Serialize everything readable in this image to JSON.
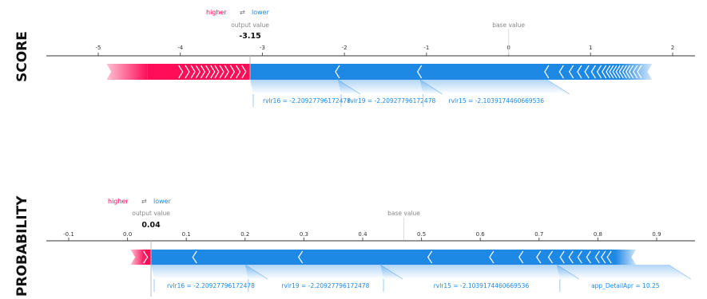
{
  "row_labels": [
    "SCORE",
    "PROBABILITY"
  ],
  "chart_data": [
    {
      "type": "bar",
      "row_label": "SCORE",
      "legend": {
        "higher": "higher",
        "arrow": "⇄",
        "lower": "lower"
      },
      "output_label": "output value",
      "output_value": -3.15,
      "output_value_text": "-3.15",
      "base_label": "base value",
      "base_value": 0.0,
      "xlim": [
        -5.0,
        2.0
      ],
      "ticks": [
        -5,
        -4,
        -3,
        -2,
        -1,
        0,
        1,
        2
      ],
      "tick_labels": [
        "-5",
        "-4",
        "-3",
        "-2",
        "-1",
        "0",
        "1",
        "2"
      ],
      "positive_segment": {
        "start": -4.9,
        "end": -3.15,
        "solid_from": -4.4
      },
      "negative_segment": {
        "start": -3.15,
        "end": 1.75,
        "fade_from": 1.35
      },
      "negative_chevrons": [
        -2.08,
        -1.08,
        0.47,
        0.65,
        0.77,
        0.87,
        0.96,
        1.04,
        1.11,
        1.17,
        1.22,
        1.26,
        1.3,
        1.34,
        1.38,
        1.42,
        1.46,
        1.5,
        1.55,
        1.6
      ],
      "positive_chevrons": [
        -4.0,
        -3.92,
        -3.85,
        -3.79,
        -3.73,
        -3.67,
        -3.61,
        -3.56,
        -3.5,
        -3.44,
        -3.37,
        -3.3,
        -3.23
      ],
      "features": [
        {
          "label": "rvlr16 = -2.20927796172478",
          "start": -3.15,
          "end": -2.08
        },
        {
          "label": "rvlr19 = -2.20927796172478",
          "start": -2.08,
          "end": -1.08
        },
        {
          "label": "rvlr15 = -2.1039174460669536",
          "start": -1.08,
          "end": 0.47
        }
      ],
      "colors": {
        "positive": "#ff0d57",
        "negative": "#1e88e5",
        "positive_light": "#ffc3d5",
        "negative_light": "#d1e6fa"
      }
    },
    {
      "type": "bar",
      "row_label": "PROBABILITY",
      "legend": {
        "higher": "higher",
        "arrow": "⇄",
        "lower": "lower"
      },
      "output_label": "output value",
      "output_value": 0.04,
      "output_value_text": "0.04",
      "base_label": "base value",
      "base_value": 0.47,
      "xlim": [
        -0.1,
        0.9
      ],
      "ticks": [
        -0.1,
        0.0,
        0.1,
        0.2,
        0.3,
        0.4,
        0.5,
        0.6,
        0.7,
        0.8,
        0.9
      ],
      "tick_labels": [
        "-0.1",
        "0.0",
        "0.1",
        "0.2",
        "0.3",
        "0.4",
        "0.5",
        "0.6",
        "0.7",
        "0.8",
        "0.9"
      ],
      "positive_segment": {
        "start": 0.005,
        "end": 0.04,
        "solid_from": 0.03
      },
      "negative_segment": {
        "start": 0.04,
        "end": 0.865,
        "fade_from": 0.83
      },
      "negative_chevrons": [
        0.115,
        0.295,
        0.515,
        0.62,
        0.67,
        0.7,
        0.72,
        0.74,
        0.755,
        0.77,
        0.785,
        0.8,
        0.81,
        0.82
      ],
      "positive_chevrons": [
        0.03
      ],
      "features": [
        {
          "label": "rvlr16 = -2.20927796172478",
          "start": 0.04,
          "end": 0.2
        },
        {
          "label": "rvlr19 = -2.20927796172478",
          "start": 0.2,
          "end": 0.43
        },
        {
          "label": "rvlr15 = -2.1039174460669536",
          "start": 0.43,
          "end": 0.73
        },
        {
          "label": "app_DetailApr = 10.25",
          "start": 0.73,
          "end": 0.92
        }
      ],
      "colors": {
        "positive": "#ff0d57",
        "negative": "#1e88e5",
        "positive_light": "#ffc3d5",
        "negative_light": "#d1e6fa"
      }
    }
  ]
}
